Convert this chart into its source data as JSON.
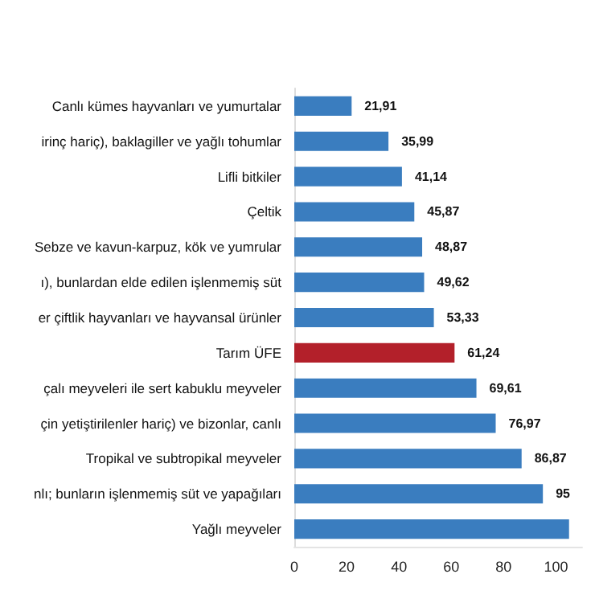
{
  "chart_data": {
    "type": "bar",
    "orientation": "horizontal",
    "categories": [
      "Canlı kümes hayvanları ve yumurtalar",
      "irinç hariç), baklagiller ve yağlı tohumlar",
      "Lifli bitkiler",
      "Çeltik",
      "Sebze ve kavun-karpuz, kök ve yumrular",
      "ı), bunlardan elde edilen işlenmemiş süt",
      "er çiftlik hayvanları ve hayvansal ürünler",
      "Tarım ÜFE",
      "çalı meyveleri ile sert kabuklu meyveler",
      "çin yetiştirilenler hariç) ve bizonlar, canlı",
      "Tropikal ve subtropikal meyveler",
      "nlı; bunların işlenmemiş süt ve yapağıları",
      "Yağlı meyveler"
    ],
    "values": [
      21.91,
      35.99,
      41.14,
      45.87,
      48.87,
      49.62,
      53.33,
      61.24,
      69.61,
      76.97,
      86.87,
      95,
      105
    ],
    "value_labels": [
      "21,91",
      "35,99",
      "41,14",
      "45,87",
      "48,87",
      "49,62",
      "53,33",
      "61,24",
      "69,61",
      "76,97",
      "86,87",
      "95",
      null
    ],
    "colors": [
      "#3a7dbf",
      "#3a7dbf",
      "#3a7dbf",
      "#3a7dbf",
      "#3a7dbf",
      "#3a7dbf",
      "#3a7dbf",
      "#b3202a",
      "#3a7dbf",
      "#3a7dbf",
      "#3a7dbf",
      "#3a7dbf",
      "#3a7dbf"
    ],
    "xlim": [
      0,
      110
    ],
    "xticks": [
      0,
      20,
      40,
      60,
      80,
      100
    ],
    "grid": false
  }
}
